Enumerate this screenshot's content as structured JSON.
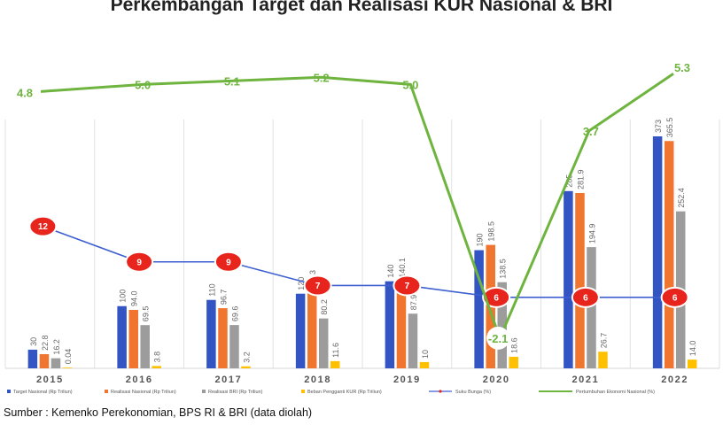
{
  "title": "Perkembangan Target dan Realisasi KUR Nasional & BRI",
  "source": "Sumber : Kemenko Perekonomian, BPS RI & BRI (data diolah)",
  "colors": {
    "target": "#3355c4",
    "realisasi_nasional": "#f0752f",
    "realisasi_bri": "#9c9c9c",
    "bunga_pengganti": "#ffc000",
    "suku_bunga": "#3d5fd0",
    "pertumbuhan": "#6eb43f",
    "marker": "#e8251d"
  },
  "chart_data": {
    "type": "bar",
    "title": "Perkembangan Target dan Realisasi KUR Nasional & BRI",
    "categories": [
      "2015",
      "2016",
      "2017",
      "2018",
      "2019",
      "2020",
      "2021",
      "2022"
    ],
    "series": [
      {
        "name": "Target Nasional (Rp Triliun)",
        "type": "bar",
        "values": [
          30,
          100,
          110,
          120,
          140,
          190,
          285,
          373
        ],
        "labels": [
          "30",
          "100",
          "110",
          "120",
          "140",
          "190",
          "285",
          "373"
        ]
      },
      {
        "name": "Realisasi Nasional (Rp Triliun)",
        "type": "bar",
        "values": [
          22.8,
          94.0,
          96.7,
          120.3,
          140.1,
          198.5,
          281.9,
          365.5
        ],
        "labels": [
          "22.8",
          "94.0",
          "96.7",
          "120.3",
          "140.1",
          "198.5",
          "281.9",
          "365.5"
        ]
      },
      {
        "name": "Realisasi BRI (Rp Triliun)",
        "type": "bar",
        "values": [
          16.2,
          69.5,
          69.6,
          80.2,
          87.9,
          138.5,
          194.9,
          252.4
        ],
        "labels": [
          "16.2",
          "69.5",
          "69.6",
          "80.2",
          "87.9",
          "138.5",
          "194.9",
          "252.4"
        ]
      },
      {
        "name": "Beban Pengganti KUR (Rp Triliun)",
        "type": "bar",
        "values": [
          0.04,
          3.8,
          3.2,
          11.6,
          10,
          18.6,
          26.7,
          14.0
        ],
        "labels": [
          "0.04",
          "3.8",
          "3.2",
          "11.6",
          "10",
          "18.6",
          "26.7",
          "14.0"
        ]
      },
      {
        "name": "Suku Bunga (%)",
        "type": "line",
        "values": [
          12,
          9,
          9,
          7,
          7,
          6,
          6,
          6
        ],
        "labels": [
          "12",
          "9",
          "9",
          "7",
          "7",
          "6",
          "6",
          "6"
        ]
      },
      {
        "name": "Pertumbuhan Ekonomi Nasional (%)",
        "type": "line",
        "values": [
          4.8,
          5.0,
          5.1,
          5.2,
          5.0,
          -2.1,
          3.7,
          5.3
        ],
        "labels": [
          "4.8",
          "5.0",
          "5.1",
          "5.2",
          "5.0",
          "-2.1",
          "3.7",
          "5.3"
        ]
      }
    ],
    "bar_axis_range": [
      0,
      400
    ],
    "suku_bunga_axis_range": [
      0,
      25
    ],
    "pertumbuhan_axis_range": [
      -2.6,
      6
    ],
    "grid": false,
    "legend_position": "bottom"
  }
}
